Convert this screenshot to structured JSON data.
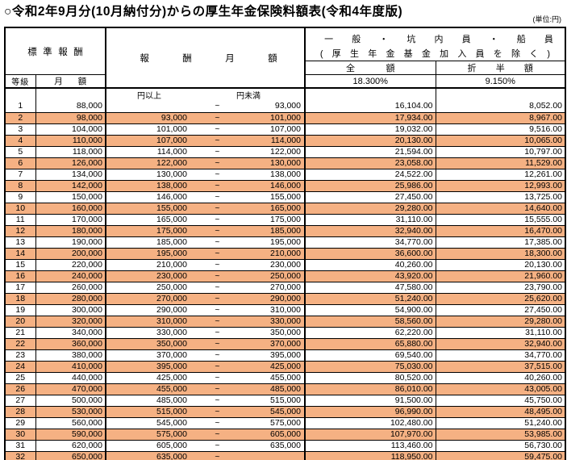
{
  "title": "○令和2年9月分(10月納付分)からの厚生年金保険料額表(令和4年度版)",
  "unit_note": "(単位:円)",
  "colors": {
    "row_highlight": "#F5B183",
    "border": "#000000",
    "background": "#FFFFFF",
    "text": "#000000"
  },
  "table": {
    "col_headers": {
      "standard_remuneration": "標準報酬",
      "grade": "等級",
      "monthly_amount": "月額",
      "remuneration_range": "報酬月額",
      "general_line1": "一般・坑内員・船員",
      "general_line2": "(厚生年金基金加入員を除く)",
      "full": "全額",
      "half": "折半額",
      "full_rate": "18.300%",
      "half_rate": "9.150%",
      "lower_unit": "円以上",
      "upper_unit": "円未満",
      "tilde": "~"
    },
    "rows": [
      {
        "grade": "1",
        "monthly": "88,000",
        "from": "",
        "to": "93,000",
        "full": "16,104.00",
        "half": "8,052.00"
      },
      {
        "grade": "2",
        "monthly": "98,000",
        "from": "93,000",
        "to": "101,000",
        "full": "17,934.00",
        "half": "8,967.00"
      },
      {
        "grade": "3",
        "monthly": "104,000",
        "from": "101,000",
        "to": "107,000",
        "full": "19,032.00",
        "half": "9,516.00"
      },
      {
        "grade": "4",
        "monthly": "110,000",
        "from": "107,000",
        "to": "114,000",
        "full": "20,130.00",
        "half": "10,065.00"
      },
      {
        "grade": "5",
        "monthly": "118,000",
        "from": "114,000",
        "to": "122,000",
        "full": "21,594.00",
        "half": "10,797.00"
      },
      {
        "grade": "6",
        "monthly": "126,000",
        "from": "122,000",
        "to": "130,000",
        "full": "23,058.00",
        "half": "11,529.00"
      },
      {
        "grade": "7",
        "monthly": "134,000",
        "from": "130,000",
        "to": "138,000",
        "full": "24,522.00",
        "half": "12,261.00"
      },
      {
        "grade": "8",
        "monthly": "142,000",
        "from": "138,000",
        "to": "146,000",
        "full": "25,986.00",
        "half": "12,993.00"
      },
      {
        "grade": "9",
        "monthly": "150,000",
        "from": "146,000",
        "to": "155,000",
        "full": "27,450.00",
        "half": "13,725.00"
      },
      {
        "grade": "10",
        "monthly": "160,000",
        "from": "155,000",
        "to": "165,000",
        "full": "29,280.00",
        "half": "14,640.00"
      },
      {
        "grade": "11",
        "monthly": "170,000",
        "from": "165,000",
        "to": "175,000",
        "full": "31,110.00",
        "half": "15,555.00"
      },
      {
        "grade": "12",
        "monthly": "180,000",
        "from": "175,000",
        "to": "185,000",
        "full": "32,940.00",
        "half": "16,470.00"
      },
      {
        "grade": "13",
        "monthly": "190,000",
        "from": "185,000",
        "to": "195,000",
        "full": "34,770.00",
        "half": "17,385.00"
      },
      {
        "grade": "14",
        "monthly": "200,000",
        "from": "195,000",
        "to": "210,000",
        "full": "36,600.00",
        "half": "18,300.00"
      },
      {
        "grade": "15",
        "monthly": "220,000",
        "from": "210,000",
        "to": "230,000",
        "full": "40,260.00",
        "half": "20,130.00"
      },
      {
        "grade": "16",
        "monthly": "240,000",
        "from": "230,000",
        "to": "250,000",
        "full": "43,920.00",
        "half": "21,960.00"
      },
      {
        "grade": "17",
        "monthly": "260,000",
        "from": "250,000",
        "to": "270,000",
        "full": "47,580.00",
        "half": "23,790.00"
      },
      {
        "grade": "18",
        "monthly": "280,000",
        "from": "270,000",
        "to": "290,000",
        "full": "51,240.00",
        "half": "25,620.00"
      },
      {
        "grade": "19",
        "monthly": "300,000",
        "from": "290,000",
        "to": "310,000",
        "full": "54,900.00",
        "half": "27,450.00"
      },
      {
        "grade": "20",
        "monthly": "320,000",
        "from": "310,000",
        "to": "330,000",
        "full": "58,560.00",
        "half": "29,280.00"
      },
      {
        "grade": "21",
        "monthly": "340,000",
        "from": "330,000",
        "to": "350,000",
        "full": "62,220.00",
        "half": "31,110.00"
      },
      {
        "grade": "22",
        "monthly": "360,000",
        "from": "350,000",
        "to": "370,000",
        "full": "65,880.00",
        "half": "32,940.00"
      },
      {
        "grade": "23",
        "monthly": "380,000",
        "from": "370,000",
        "to": "395,000",
        "full": "69,540.00",
        "half": "34,770.00"
      },
      {
        "grade": "24",
        "monthly": "410,000",
        "from": "395,000",
        "to": "425,000",
        "full": "75,030.00",
        "half": "37,515.00"
      },
      {
        "grade": "25",
        "monthly": "440,000",
        "from": "425,000",
        "to": "455,000",
        "full": "80,520.00",
        "half": "40,260.00"
      },
      {
        "grade": "26",
        "monthly": "470,000",
        "from": "455,000",
        "to": "485,000",
        "full": "86,010.00",
        "half": "43,005.00"
      },
      {
        "grade": "27",
        "monthly": "500,000",
        "from": "485,000",
        "to": "515,000",
        "full": "91,500.00",
        "half": "45,750.00"
      },
      {
        "grade": "28",
        "monthly": "530,000",
        "from": "515,000",
        "to": "545,000",
        "full": "96,990.00",
        "half": "48,495.00"
      },
      {
        "grade": "29",
        "monthly": "560,000",
        "from": "545,000",
        "to": "575,000",
        "full": "102,480.00",
        "half": "51,240.00"
      },
      {
        "grade": "30",
        "monthly": "590,000",
        "from": "575,000",
        "to": "605,000",
        "full": "107,970.00",
        "half": "53,985.00"
      },
      {
        "grade": "31",
        "monthly": "620,000",
        "from": "605,000",
        "to": "635,000",
        "full": "113,460.00",
        "half": "56,730.00"
      },
      {
        "grade": "32",
        "monthly": "650,000",
        "from": "635,000",
        "to": "",
        "full": "118,950.00",
        "half": "59,475.00"
      }
    ]
  }
}
